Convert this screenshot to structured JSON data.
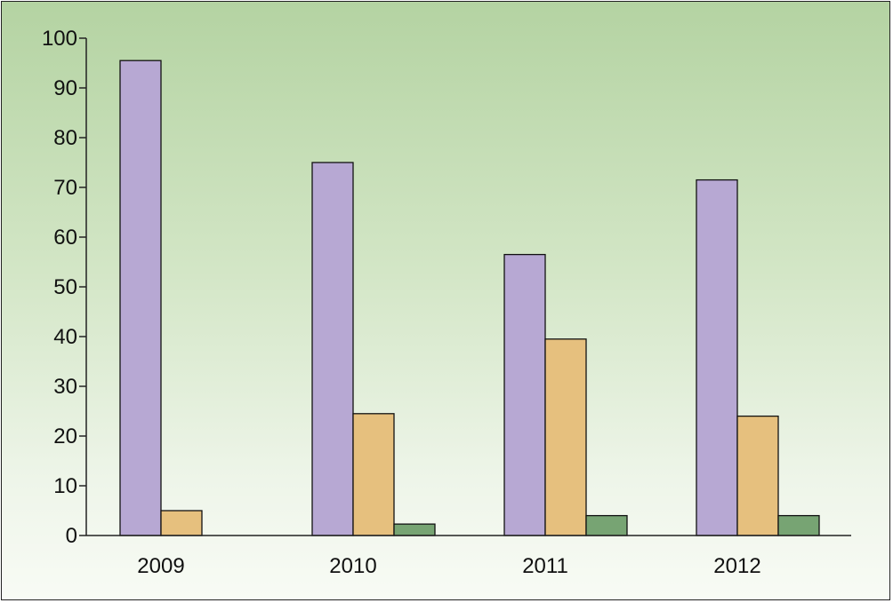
{
  "chart_data": {
    "type": "bar",
    "title": "",
    "xlabel": "",
    "ylabel": "",
    "categories": [
      "2009",
      "2010",
      "2011",
      "2012"
    ],
    "ylim": [
      0,
      100
    ],
    "yticks": [
      0,
      10,
      20,
      30,
      40,
      50,
      60,
      70,
      80,
      90,
      100
    ],
    "yticks_text": [
      "0",
      "10",
      "20",
      "30",
      "40",
      "50",
      "60",
      "70",
      "80",
      "90",
      "100"
    ],
    "grid": false,
    "legend": "none",
    "series": [
      {
        "color": "#b7a8d3",
        "values": [
          95.5,
          75,
          56.5,
          71.5
        ]
      },
      {
        "color": "#e6c07e",
        "values": [
          5,
          24.5,
          39.5,
          24
        ]
      },
      {
        "color": "#77a473",
        "values": [
          0,
          2.3,
          4,
          4
        ]
      }
    ]
  }
}
